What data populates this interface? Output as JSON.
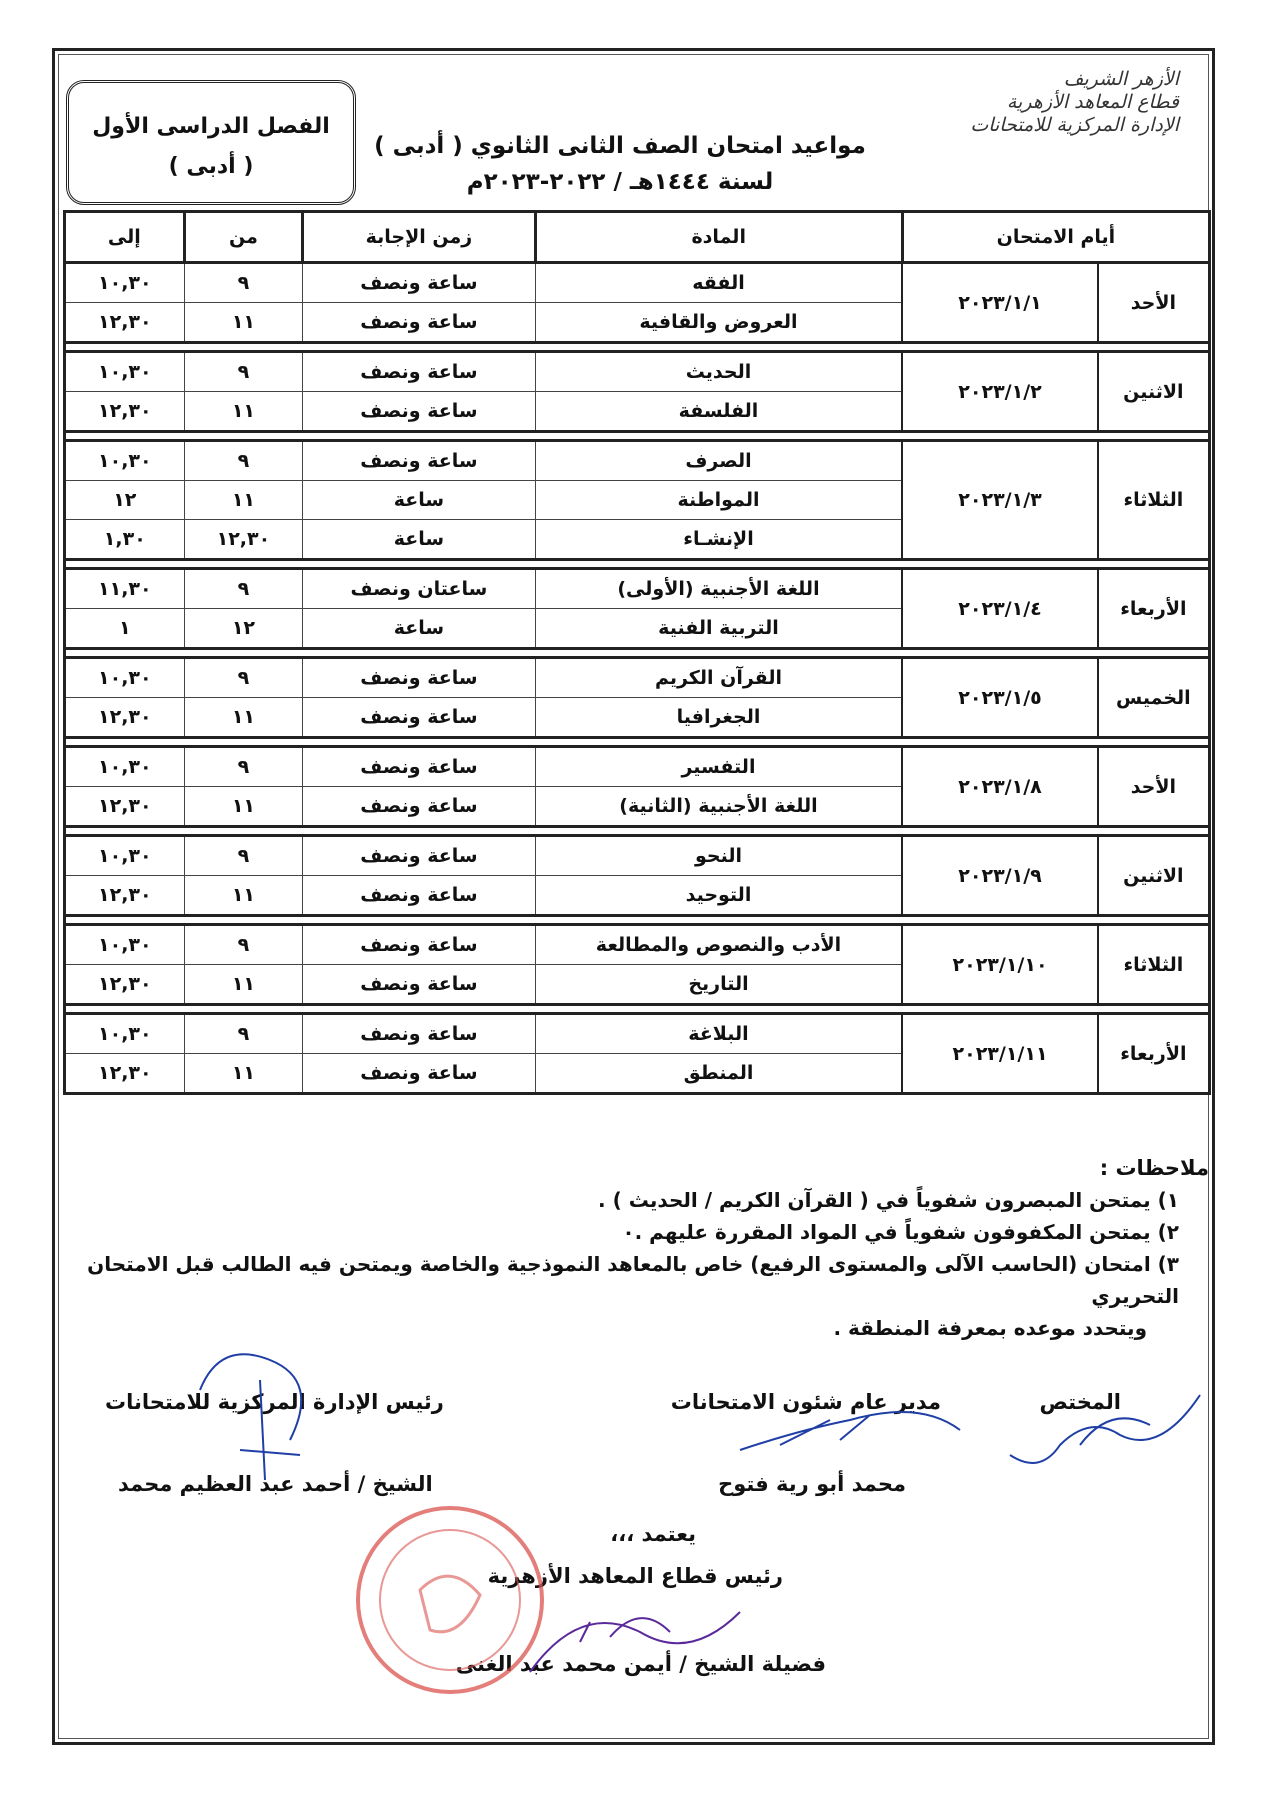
{
  "header": {
    "org_lines": [
      "الأزهر الشريف",
      "قطاع المعاهد الأزهرية",
      "الإدارة المركزية للامتحانات"
    ],
    "title_line1": "مواعيد امتحان الصف الثانى الثانوي ( أدبى )",
    "title_line2": "لسنة ١٤٤٤هـ / ٢٠٢٢-٢٠٢٣م",
    "term_line1": "الفصل الدراسى الأول",
    "term_line2": "( أدبى )"
  },
  "table": {
    "headers": {
      "days": "أيام الامتحان",
      "subject": "المادة",
      "duration": "زمن الإجابة",
      "from": "من",
      "to": "إلى"
    },
    "groups": [
      {
        "day": "الأحد",
        "date": "٢٠٢٣/١/١",
        "exams": [
          {
            "subject": "الفقه",
            "duration": "ساعة ونصف",
            "from": "٩",
            "to": "١٠,٣٠"
          },
          {
            "subject": "العروض والقافية",
            "duration": "ساعة ونصف",
            "from": "١١",
            "to": "١٢,٣٠"
          }
        ]
      },
      {
        "day": "الاثنين",
        "date": "٢٠٢٣/١/٢",
        "exams": [
          {
            "subject": "الحديث",
            "duration": "ساعة ونصف",
            "from": "٩",
            "to": "١٠,٣٠"
          },
          {
            "subject": "الفلسفة",
            "duration": "ساعة ونصف",
            "from": "١١",
            "to": "١٢,٣٠"
          }
        ]
      },
      {
        "day": "الثلاثاء",
        "date": "٢٠٢٣/١/٣",
        "exams": [
          {
            "subject": "الصرف",
            "duration": "ساعة ونصف",
            "from": "٩",
            "to": "١٠,٣٠"
          },
          {
            "subject": "المواطنة",
            "duration": "ساعة",
            "from": "١١",
            "to": "١٢"
          },
          {
            "subject": "الإنشـاء",
            "duration": "ساعة",
            "from": "١٢,٣٠",
            "to": "١,٣٠"
          }
        ]
      },
      {
        "day": "الأربعاء",
        "date": "٢٠٢٣/١/٤",
        "exams": [
          {
            "subject": "اللغة الأجنبية (الأولى)",
            "duration": "ساعتان ونصف",
            "from": "٩",
            "to": "١١,٣٠"
          },
          {
            "subject": "التربية الفنية",
            "duration": "ساعة",
            "from": "١٢",
            "to": "١"
          }
        ]
      },
      {
        "day": "الخميس",
        "date": "٢٠٢٣/١/٥",
        "exams": [
          {
            "subject": "القرآن الكريم",
            "duration": "ساعة ونصف",
            "from": "٩",
            "to": "١٠,٣٠"
          },
          {
            "subject": "الجغرافيا",
            "duration": "ساعة ونصف",
            "from": "١١",
            "to": "١٢,٣٠"
          }
        ]
      },
      {
        "day": "الأحد",
        "date": "٢٠٢٣/١/٨",
        "exams": [
          {
            "subject": "التفسير",
            "duration": "ساعة ونصف",
            "from": "٩",
            "to": "١٠,٣٠"
          },
          {
            "subject": "اللغة الأجنبية (الثانية)",
            "duration": "ساعة ونصف",
            "from": "١١",
            "to": "١٢,٣٠"
          }
        ]
      },
      {
        "day": "الاثنين",
        "date": "٢٠٢٣/١/٩",
        "exams": [
          {
            "subject": "النحو",
            "duration": "ساعة ونصف",
            "from": "٩",
            "to": "١٠,٣٠"
          },
          {
            "subject": "التوحيد",
            "duration": "ساعة ونصف",
            "from": "١١",
            "to": "١٢,٣٠"
          }
        ]
      },
      {
        "day": "الثلاثاء",
        "date": "٢٠٢٣/١/١٠",
        "exams": [
          {
            "subject": "الأدب والنصوص والمطالعة",
            "duration": "ساعة ونصف",
            "from": "٩",
            "to": "١٠,٣٠"
          },
          {
            "subject": "التاريخ",
            "duration": "ساعة ونصف",
            "from": "١١",
            "to": "١٢,٣٠"
          }
        ]
      },
      {
        "day": "الأربعاء",
        "date": "٢٠٢٣/١/١١",
        "exams": [
          {
            "subject": "البلاغة",
            "duration": "ساعة ونصف",
            "from": "٩",
            "to": "١٠,٣٠"
          },
          {
            "subject": "المنطق",
            "duration": "ساعة ونصف",
            "from": "١١",
            "to": "١٢,٣٠"
          }
        ]
      }
    ]
  },
  "notes": {
    "heading": "ملاحظات :",
    "items": [
      "١) يمتحن المبصرون شفوياً في ( القرآن الكريم / الحديث ) .",
      "٢) يمتحن المكفوفون شفوياً في المواد المقررة عليهم .٠",
      "٣) امتحان (الحاسب الآلى والمستوى الرفيع) خاص بالمعاهد النموذجية والخاصة ويمتحن فيه الطالب قبل الامتحان التحريري"
    ],
    "continuation": "ويتحدد موعده بمعرفة المنطقة ."
  },
  "signatures": {
    "specialist_title": "المختص",
    "director_title": "مدير عام شئون الامتحانات",
    "director_name": "محمد أبو رية فتوح",
    "head_title": "رئيس الإدارة المركزية للامتحانات",
    "head_name": "الشيخ / أحمد عبد العظيم محمد",
    "approval": "يعتمد ،،،",
    "sector_title": "رئيس قطاع المعاهد الأزهرية",
    "sector_name": "فضيلة الشيخ / أيمن محمد عبد الغنى"
  },
  "colors": {
    "ink_blue": "#1f3fa6",
    "stamp_red": "#d9534f"
  }
}
